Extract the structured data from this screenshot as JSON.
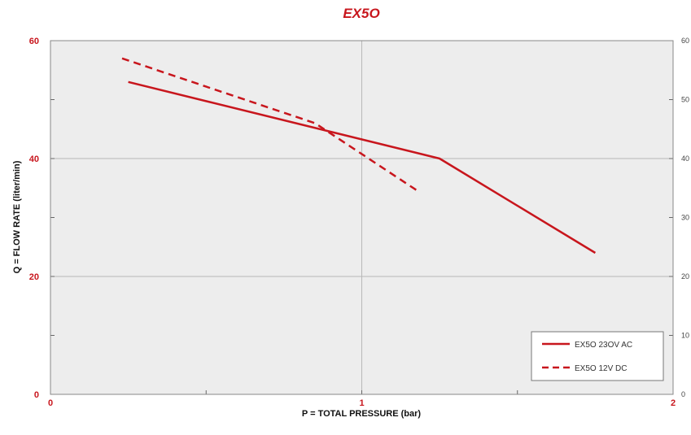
{
  "chart_data": {
    "type": "line",
    "title": "EX5O",
    "xlabel": "P = TOTAL PRESSURE (bar)",
    "ylabel": "Q = FLOW RATE (liter/min)",
    "xlim": [
      0,
      2
    ],
    "ylim": [
      0,
      60
    ],
    "x_ticks": [
      "0",
      "1",
      "2"
    ],
    "y_ticks": [
      "0",
      "20",
      "40",
      "60"
    ],
    "right_ticks": [
      "0",
      "10",
      "20",
      "30",
      "40",
      "50",
      "60"
    ],
    "grid": true,
    "legend_position": "bottom-right",
    "series": [
      {
        "name": "EX5O 23OV AC",
        "style": "solid",
        "color": "#c8161d",
        "x": [
          0.25,
          1.25,
          1.75
        ],
        "y": [
          53,
          40,
          24
        ]
      },
      {
        "name": "EX5O 12V DC",
        "style": "dashed",
        "color": "#c8161d",
        "x": [
          0.23,
          0.85,
          1.18
        ],
        "y": [
          57,
          46,
          34.5
        ]
      }
    ]
  }
}
